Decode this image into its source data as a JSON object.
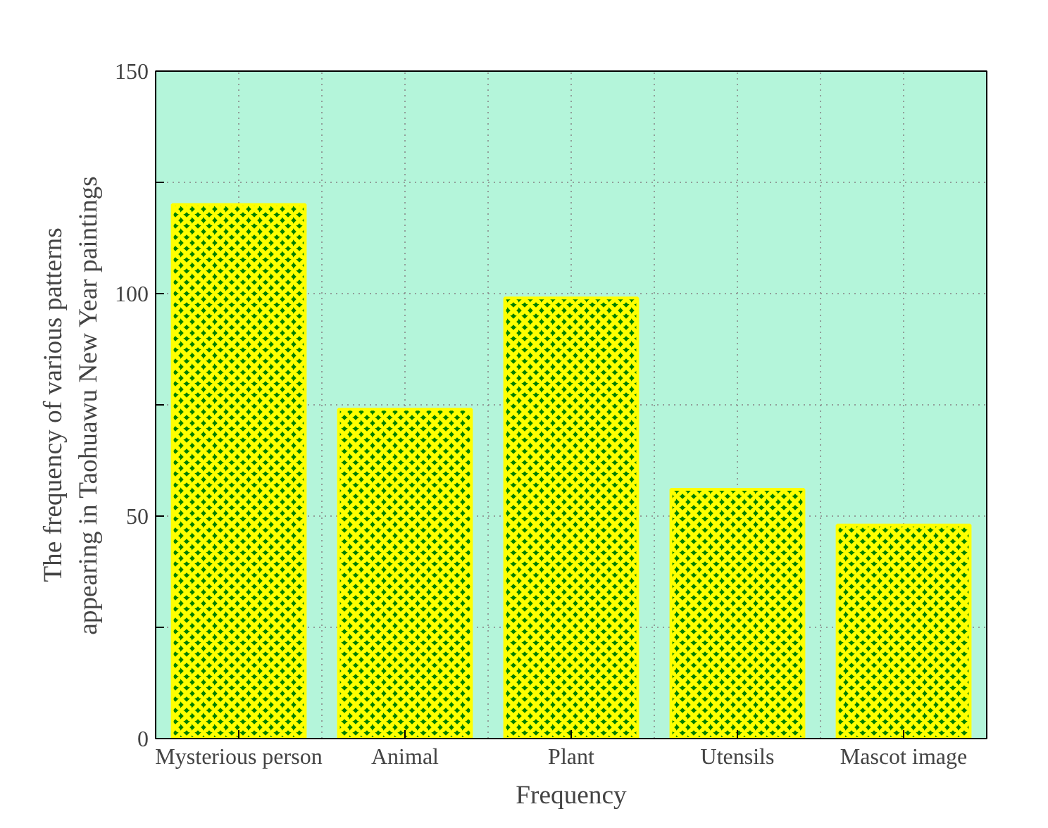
{
  "chart_data": {
    "type": "bar",
    "xlabel": "Frequency",
    "ylabel": "The frequency of various patterns\nappearing in Taohuawu New Year paintings",
    "categories": [
      "Mysterious person",
      "Animal",
      "Plant",
      "Utensils",
      "Mascot image"
    ],
    "values": [
      120,
      74,
      99,
      56,
      48
    ],
    "color": "#008000",
    "ylim": [
      0,
      150
    ],
    "yticks": [
      0,
      {
        "value": 25,
        "label": null
      },
      50,
      {
        "value": 75,
        "label": null
      },
      100,
      {
        "value": 125,
        "label": null
      },
      150
    ],
    "grid": true
  }
}
